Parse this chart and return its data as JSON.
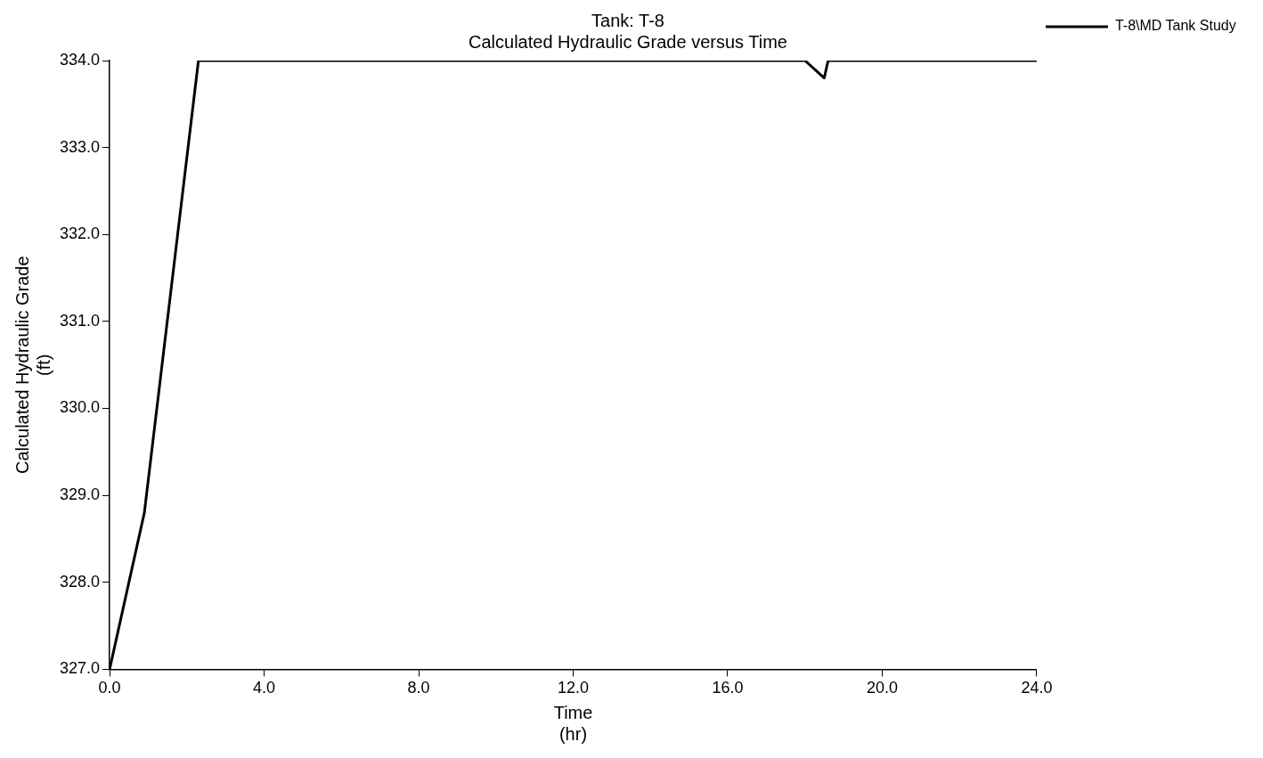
{
  "chart_data": {
    "type": "line",
    "title": "Tank: T-8",
    "subtitle": "Calculated Hydraulic Grade versus Time",
    "xlabel": "Time\n(hr)",
    "ylabel": "Calculated Hydraulic Grade\n(ft)",
    "series": [
      {
        "name": "T-8\\MD Tank Study",
        "color": "#000000",
        "x": [
          0,
          0.9,
          2.3,
          18.0,
          18.5,
          18.6,
          24.0
        ],
        "values": [
          327.0,
          328.8,
          334.0,
          334.0,
          333.8,
          334.0,
          334.0
        ]
      }
    ],
    "xlim": [
      0,
      24
    ],
    "xticks": [
      {
        "value": 0,
        "label": "0.0"
      },
      {
        "value": 4,
        "label": "4.0"
      },
      {
        "value": 8,
        "label": "8.0"
      },
      {
        "value": 12,
        "label": "12.0"
      },
      {
        "value": 16,
        "label": "16.0"
      },
      {
        "value": 20,
        "label": "20.0"
      },
      {
        "value": 24,
        "label": "24.0"
      }
    ],
    "ylim": [
      327,
      334
    ],
    "yticks": [
      {
        "value": 327,
        "label": "327.0"
      },
      {
        "value": 328,
        "label": "328.0"
      },
      {
        "value": 329,
        "label": "329.0"
      },
      {
        "value": 330,
        "label": "330.0"
      },
      {
        "value": 331,
        "label": "331.0"
      },
      {
        "value": 332,
        "label": "332.0"
      },
      {
        "value": 333,
        "label": "333.0"
      },
      {
        "value": 334,
        "label": "334.0"
      }
    ],
    "grid": false,
    "legend": "top right",
    "marker": "none",
    "line_style": "solid"
  }
}
